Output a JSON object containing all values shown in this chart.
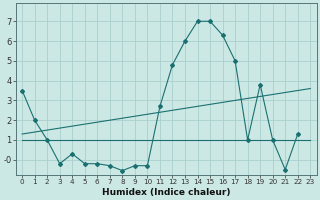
{
  "xlabel": "Humidex (Indice chaleur)",
  "bg_color": "#cce8e5",
  "grid_color": "#aacfcc",
  "line_color": "#1a7070",
  "xlim": [
    -0.5,
    23.5
  ],
  "ylim": [
    -0.75,
    7.9
  ],
  "yticks": [
    0,
    1,
    2,
    3,
    4,
    5,
    6,
    7
  ],
  "ytick_labels": [
    "-0",
    "1",
    "2",
    "3",
    "4",
    "5",
    "6",
    "7"
  ],
  "xticks": [
    0,
    1,
    2,
    3,
    4,
    5,
    6,
    7,
    8,
    9,
    10,
    11,
    12,
    13,
    14,
    15,
    16,
    17,
    18,
    19,
    20,
    21,
    22,
    23
  ],
  "xtick_labels": [
    "0",
    "1",
    "2",
    "3",
    "4",
    "5",
    "6",
    "7",
    "8",
    "9",
    "10",
    "11",
    "12",
    "13",
    "14",
    "15",
    "16",
    "17",
    "18",
    "19",
    "20",
    "21",
    "22",
    "23"
  ],
  "series1_x": [
    0,
    1,
    2,
    3,
    4,
    5,
    6,
    7,
    8,
    9,
    10,
    11,
    12,
    13,
    14,
    15,
    16,
    17,
    18,
    19,
    20,
    21,
    22
  ],
  "series1_y": [
    3.5,
    2.0,
    1.0,
    -0.2,
    0.3,
    -0.2,
    -0.2,
    -0.3,
    -0.55,
    -0.3,
    -0.3,
    2.7,
    4.8,
    6.0,
    7.0,
    7.0,
    6.3,
    5.0,
    1.0,
    3.8,
    1.0,
    -0.5,
    1.3
  ],
  "series2_x": [
    0,
    1,
    2,
    3,
    4,
    5,
    6,
    7,
    8,
    9,
    10,
    11,
    12,
    13,
    14,
    15,
    16,
    17,
    18,
    19,
    20,
    21,
    22,
    23
  ],
  "series2_y": [
    1.3,
    1.4,
    1.5,
    1.6,
    1.7,
    1.8,
    1.9,
    2.0,
    2.1,
    2.2,
    2.3,
    2.4,
    2.5,
    2.6,
    2.7,
    2.8,
    2.9,
    3.0,
    3.1,
    3.2,
    3.3,
    3.4,
    3.5,
    3.6
  ],
  "series3_x": [
    0,
    1,
    2,
    3,
    4,
    5,
    6,
    7,
    8,
    9,
    10,
    11,
    12,
    13,
    14,
    15,
    16,
    17,
    18,
    19,
    20,
    21,
    22,
    23
  ],
  "series3_y": [
    1.0,
    1.0,
    1.0,
    1.0,
    1.0,
    1.0,
    1.0,
    1.0,
    1.0,
    1.0,
    1.0,
    1.0,
    1.0,
    1.0,
    1.0,
    1.0,
    1.0,
    1.0,
    1.0,
    1.0,
    1.0,
    1.0,
    1.0,
    1.0
  ]
}
